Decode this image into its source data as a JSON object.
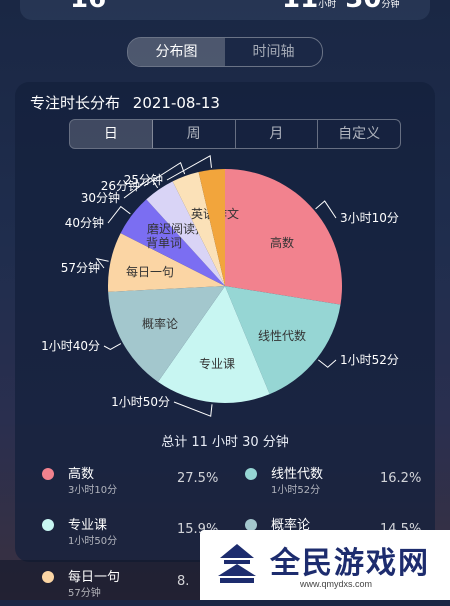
{
  "header": {
    "left_value": "16",
    "right_value": "11",
    "right_unit1": "小时",
    "right_value2": "30",
    "right_unit2": "分钟"
  },
  "view_toggle": {
    "distribution": "分布图",
    "timeline": "时间轴"
  },
  "card": {
    "title": "专注时长分布",
    "date": "2021-08-13",
    "periods": [
      "日",
      "周",
      "月",
      "自定义"
    ],
    "total": "总计 11 小时 30 分钟"
  },
  "chart_data": {
    "type": "pie",
    "slices": [
      {
        "name": "高数",
        "minutes": 190,
        "duration": "3小时10分",
        "percent": "27.5%",
        "color": "#f2828e"
      },
      {
        "name": "线性代数",
        "minutes": 112,
        "duration": "1小时52分",
        "percent": "16.2%",
        "color": "#96d6d4"
      },
      {
        "name": "专业课",
        "minutes": 110,
        "duration": "1小时50分",
        "percent": "15.9%",
        "color": "#c8f6f2"
      },
      {
        "name": "概率论",
        "minutes": 100,
        "duration": "1小时40分",
        "percent": "14.5%",
        "color": "#a3c7cd"
      },
      {
        "name": "每日一句",
        "minutes": 57,
        "duration": "57分钟",
        "percent": "8.3%",
        "color": "#fbd5a4"
      },
      {
        "name": "背单词",
        "minutes": 40,
        "duration": "40分钟",
        "color": "#7b6ef2"
      },
      {
        "name": "磨迟阅读技巧",
        "minutes": 30,
        "duration": "30分钟",
        "color": "#d9d4f6"
      },
      {
        "name": "英语作文",
        "minutes": 26,
        "duration": "26分钟",
        "color": "#fbe1b8"
      },
      {
        "name": "",
        "minutes": 25,
        "duration": "25分钟",
        "color": "#f2a53c"
      }
    ],
    "outer_labels": [
      "3小时10分",
      "1小时52分",
      "1小时50分",
      "1小时40分",
      "57分钟",
      "40分钟",
      "30分钟",
      "26分钟",
      "25分钟"
    ]
  },
  "legend": [
    {
      "name": "高数",
      "duration": "3小时10分",
      "percent": "27.5%",
      "color": "#f2828e"
    },
    {
      "name": "线性代数",
      "duration": "1小时52分",
      "percent": "16.2%",
      "color": "#96d6d4"
    },
    {
      "name": "专业课",
      "duration": "1小时50分",
      "percent": "15.9%",
      "color": "#c8f6f2"
    },
    {
      "name": "概率论",
      "duration": "",
      "percent": "14.5%",
      "color": "#a3c7cd"
    },
    {
      "name": "每日一句",
      "duration": "57分钟",
      "percent": "8.",
      "color": "#fbd5a4"
    }
  ],
  "watermark": {
    "text": "全民游戏网",
    "url": "www.qmydxs.com"
  }
}
